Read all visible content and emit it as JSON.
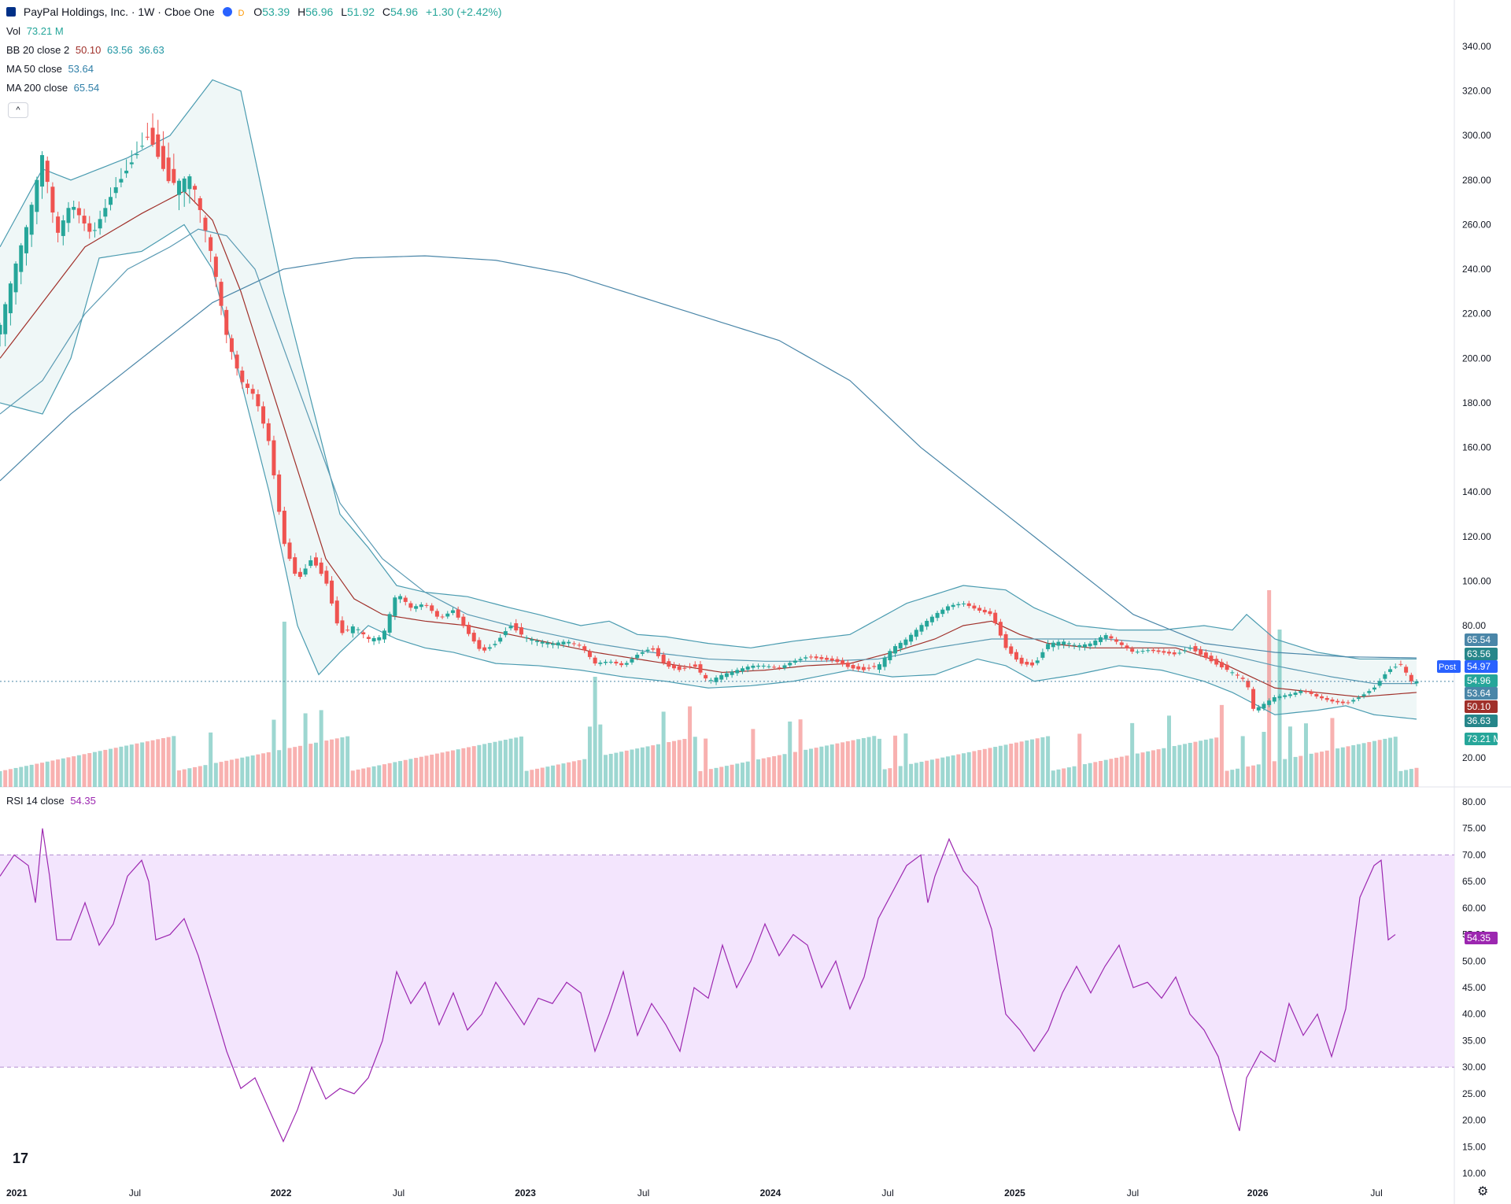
{
  "header": {
    "symbol_name": "PayPal Holdings, Inc. · 1W · Cboe One",
    "o_label": "O",
    "o_value": "53.39",
    "h_label": "H",
    "h_value": "56.96",
    "l_label": "L",
    "l_value": "51.92",
    "c_label": "C",
    "c_value": "54.96",
    "change": "+1.30 (+2.42%)",
    "badge_letter": "D"
  },
  "legends": {
    "vol_label": "Vol",
    "vol_value": "73.21 M",
    "bb_label": "BB 20 close 2",
    "bb_basis": "50.10",
    "bb_upper": "63.56",
    "bb_lower": "36.63",
    "ma50_label": "MA 50 close",
    "ma50_value": "53.64",
    "ma200_label": "MA 200 close",
    "ma200_value": "65.54",
    "rsi_label": "RSI 14 close",
    "rsi_value": "54.35"
  },
  "collapse_glyph": "^",
  "logo_text": "17",
  "colors": {
    "up": "#26a69a",
    "down": "#ef5350",
    "bb": "#4a9bb0",
    "basis": "#a0302a",
    "ma50": "#5a9ab3",
    "ma200": "#4a86a8",
    "rsi": "#9c27b0",
    "rsi_band": "#f3e5fd"
  },
  "chart_data": {
    "type": "candlestick",
    "interval": "1W",
    "price_axis": {
      "ticks": [
        "340.00",
        "320.00",
        "300.00",
        "280.00",
        "260.00",
        "240.00",
        "220.00",
        "200.00",
        "180.00",
        "160.00",
        "140.00",
        "120.00",
        "100.00",
        "80.00",
        "20.00"
      ],
      "range": [
        10,
        350
      ]
    },
    "rsi_axis": {
      "ticks": [
        "80.00",
        "75.00",
        "70.00",
        "65.00",
        "60.00",
        "55.00",
        "50.00",
        "45.00",
        "40.00",
        "35.00",
        "30.00",
        "25.00",
        "20.00",
        "15.00",
        "10.00"
      ],
      "range": [
        10,
        80
      ],
      "upper_band": 70,
      "lower_band": 30
    },
    "time_axis": [
      "2021",
      "Jul",
      "2022",
      "Jul",
      "2023",
      "Jul",
      "2024",
      "Jul",
      "2025",
      "Jul",
      "2026",
      "Jul"
    ],
    "time_axis_fractions": [
      0.0,
      0.0865,
      0.1865,
      0.2727,
      0.359,
      0.4455,
      0.532,
      0.618,
      0.7045,
      0.791,
      0.876,
      0.963
    ],
    "price_keypoints": [
      [
        0.0,
        215
      ],
      [
        0.01,
        240
      ],
      [
        0.02,
        262
      ],
      [
        0.03,
        292
      ],
      [
        0.04,
        255
      ],
      [
        0.05,
        270
      ],
      [
        0.065,
        255
      ],
      [
        0.08,
        275
      ],
      [
        0.095,
        290
      ],
      [
        0.105,
        300
      ],
      [
        0.12,
        278
      ],
      [
        0.135,
        282
      ],
      [
        0.15,
        245
      ],
      [
        0.16,
        210
      ],
      [
        0.17,
        190
      ],
      [
        0.18,
        183
      ],
      [
        0.19,
        162
      ],
      [
        0.2,
        118
      ],
      [
        0.21,
        100
      ],
      [
        0.22,
        110
      ],
      [
        0.23,
        100
      ],
      [
        0.24,
        76
      ],
      [
        0.25,
        80
      ],
      [
        0.26,
        74
      ],
      [
        0.27,
        75
      ],
      [
        0.28,
        95
      ],
      [
        0.29,
        88
      ],
      [
        0.3,
        90
      ],
      [
        0.31,
        83
      ],
      [
        0.32,
        87
      ],
      [
        0.33,
        77
      ],
      [
        0.34,
        68
      ],
      [
        0.35,
        72
      ],
      [
        0.36,
        80
      ],
      [
        0.37,
        75
      ],
      [
        0.38,
        73
      ],
      [
        0.39,
        72
      ],
      [
        0.4,
        73
      ],
      [
        0.41,
        71
      ],
      [
        0.42,
        63
      ],
      [
        0.43,
        64
      ],
      [
        0.44,
        62
      ],
      [
        0.45,
        67
      ],
      [
        0.46,
        70
      ],
      [
        0.47,
        62
      ],
      [
        0.48,
        60
      ],
      [
        0.49,
        62
      ],
      [
        0.5,
        55
      ],
      [
        0.51,
        58
      ],
      [
        0.52,
        60
      ],
      [
        0.53,
        62
      ],
      [
        0.54,
        62
      ],
      [
        0.55,
        61
      ],
      [
        0.56,
        64
      ],
      [
        0.57,
        66
      ],
      [
        0.58,
        65
      ],
      [
        0.59,
        64
      ],
      [
        0.6,
        61
      ],
      [
        0.61,
        60
      ],
      [
        0.62,
        62
      ],
      [
        0.63,
        70
      ],
      [
        0.64,
        74
      ],
      [
        0.65,
        80
      ],
      [
        0.66,
        85
      ],
      [
        0.67,
        89
      ],
      [
        0.68,
        90
      ],
      [
        0.69,
        87
      ],
      [
        0.7,
        85
      ],
      [
        0.71,
        70
      ],
      [
        0.72,
        63
      ],
      [
        0.73,
        62
      ],
      [
        0.74,
        72
      ],
      [
        0.75,
        73
      ],
      [
        0.76,
        71
      ],
      [
        0.77,
        72
      ],
      [
        0.78,
        76
      ],
      [
        0.79,
        72
      ],
      [
        0.8,
        68
      ],
      [
        0.81,
        69
      ],
      [
        0.82,
        68
      ],
      [
        0.83,
        67
      ],
      [
        0.84,
        70
      ],
      [
        0.85,
        66
      ],
      [
        0.86,
        62
      ],
      [
        0.87,
        59
      ],
      [
        0.88,
        55
      ],
      [
        0.885,
        42
      ],
      [
        0.89,
        44
      ],
      [
        0.9,
        48
      ],
      [
        0.91,
        49
      ],
      [
        0.92,
        51
      ],
      [
        0.93,
        48
      ],
      [
        0.94,
        46
      ],
      [
        0.95,
        45
      ],
      [
        0.96,
        48
      ],
      [
        0.97,
        52
      ],
      [
        0.98,
        60
      ],
      [
        0.99,
        63
      ],
      [
        0.995,
        55
      ],
      [
        1.0,
        55
      ]
    ],
    "bb_upper_keypoints": [
      [
        0.0,
        250
      ],
      [
        0.03,
        285
      ],
      [
        0.05,
        280
      ],
      [
        0.09,
        290
      ],
      [
        0.12,
        300
      ],
      [
        0.15,
        325
      ],
      [
        0.17,
        320
      ],
      [
        0.18,
        290
      ],
      [
        0.2,
        230
      ],
      [
        0.22,
        180
      ],
      [
        0.24,
        130
      ],
      [
        0.26,
        115
      ],
      [
        0.28,
        98
      ],
      [
        0.3,
        95
      ],
      [
        0.33,
        93
      ],
      [
        0.36,
        88
      ],
      [
        0.38,
        85
      ],
      [
        0.41,
        80
      ],
      [
        0.43,
        82
      ],
      [
        0.45,
        76
      ],
      [
        0.47,
        75
      ],
      [
        0.5,
        72
      ],
      [
        0.53,
        70
      ],
      [
        0.56,
        73
      ],
      [
        0.6,
        76
      ],
      [
        0.64,
        90
      ],
      [
        0.68,
        98
      ],
      [
        0.71,
        96
      ],
      [
        0.73,
        88
      ],
      [
        0.76,
        80
      ],
      [
        0.79,
        78
      ],
      [
        0.82,
        78
      ],
      [
        0.85,
        80
      ],
      [
        0.87,
        78
      ],
      [
        0.88,
        85
      ],
      [
        0.9,
        74
      ],
      [
        0.93,
        68
      ],
      [
        0.96,
        65
      ],
      [
        1.0,
        65
      ]
    ],
    "bb_lower_keypoints": [
      [
        0.0,
        180
      ],
      [
        0.03,
        175
      ],
      [
        0.05,
        200
      ],
      [
        0.07,
        245
      ],
      [
        0.1,
        248
      ],
      [
        0.13,
        260
      ],
      [
        0.15,
        240
      ],
      [
        0.17,
        190
      ],
      [
        0.19,
        140
      ],
      [
        0.21,
        80
      ],
      [
        0.225,
        58
      ],
      [
        0.24,
        68
      ],
      [
        0.26,
        80
      ],
      [
        0.28,
        74
      ],
      [
        0.3,
        70
      ],
      [
        0.32,
        68
      ],
      [
        0.35,
        63
      ],
      [
        0.38,
        62
      ],
      [
        0.41,
        60
      ],
      [
        0.44,
        57
      ],
      [
        0.47,
        55
      ],
      [
        0.5,
        52
      ],
      [
        0.53,
        53
      ],
      [
        0.56,
        55
      ],
      [
        0.6,
        60
      ],
      [
        0.63,
        57
      ],
      [
        0.66,
        58
      ],
      [
        0.69,
        65
      ],
      [
        0.71,
        62
      ],
      [
        0.73,
        55
      ],
      [
        0.76,
        58
      ],
      [
        0.79,
        62
      ],
      [
        0.82,
        60
      ],
      [
        0.85,
        55
      ],
      [
        0.87,
        50
      ],
      [
        0.9,
        40
      ],
      [
        0.93,
        42
      ],
      [
        0.95,
        44
      ],
      [
        0.97,
        40
      ],
      [
        1.0,
        38
      ]
    ],
    "bb_basis_keypoints": [
      [
        0.0,
        200
      ],
      [
        0.03,
        225
      ],
      [
        0.06,
        250
      ],
      [
        0.1,
        265
      ],
      [
        0.13,
        275
      ],
      [
        0.15,
        262
      ],
      [
        0.17,
        230
      ],
      [
        0.19,
        190
      ],
      [
        0.21,
        150
      ],
      [
        0.23,
        110
      ],
      [
        0.25,
        92
      ],
      [
        0.27,
        85
      ],
      [
        0.3,
        82
      ],
      [
        0.33,
        80
      ],
      [
        0.36,
        76
      ],
      [
        0.39,
        72
      ],
      [
        0.42,
        68
      ],
      [
        0.45,
        65
      ],
      [
        0.48,
        62
      ],
      [
        0.51,
        59
      ],
      [
        0.54,
        60
      ],
      [
        0.57,
        62
      ],
      [
        0.6,
        63
      ],
      [
        0.63,
        68
      ],
      [
        0.66,
        74
      ],
      [
        0.68,
        80
      ],
      [
        0.7,
        82
      ],
      [
        0.72,
        76
      ],
      [
        0.74,
        72
      ],
      [
        0.77,
        70
      ],
      [
        0.8,
        70
      ],
      [
        0.83,
        70
      ],
      [
        0.86,
        64
      ],
      [
        0.88,
        58
      ],
      [
        0.9,
        52
      ],
      [
        0.93,
        50
      ],
      [
        0.96,
        48
      ],
      [
        1.0,
        50
      ]
    ],
    "ma50_keypoints": [
      [
        0.0,
        175
      ],
      [
        0.03,
        190
      ],
      [
        0.06,
        220
      ],
      [
        0.09,
        240
      ],
      [
        0.12,
        250
      ],
      [
        0.14,
        258
      ],
      [
        0.16,
        255
      ],
      [
        0.18,
        240
      ],
      [
        0.2,
        205
      ],
      [
        0.22,
        170
      ],
      [
        0.24,
        135
      ],
      [
        0.27,
        110
      ],
      [
        0.3,
        95
      ],
      [
        0.33,
        85
      ],
      [
        0.36,
        80
      ],
      [
        0.39,
        76
      ],
      [
        0.42,
        72
      ],
      [
        0.46,
        68
      ],
      [
        0.5,
        65
      ],
      [
        0.54,
        64
      ],
      [
        0.58,
        64
      ],
      [
        0.62,
        65
      ],
      [
        0.66,
        70
      ],
      [
        0.7,
        74
      ],
      [
        0.74,
        74
      ],
      [
        0.78,
        74
      ],
      [
        0.82,
        72
      ],
      [
        0.86,
        68
      ],
      [
        0.9,
        62
      ],
      [
        0.94,
        57
      ],
      [
        0.97,
        54
      ],
      [
        1.0,
        54
      ]
    ],
    "ma200_keypoints": [
      [
        0.0,
        145
      ],
      [
        0.05,
        175
      ],
      [
        0.1,
        200
      ],
      [
        0.15,
        225
      ],
      [
        0.2,
        240
      ],
      [
        0.25,
        245
      ],
      [
        0.3,
        246
      ],
      [
        0.35,
        244
      ],
      [
        0.4,
        238
      ],
      [
        0.45,
        228
      ],
      [
        0.5,
        218
      ],
      [
        0.55,
        208
      ],
      [
        0.6,
        190
      ],
      [
        0.65,
        160
      ],
      [
        0.7,
        135
      ],
      [
        0.75,
        110
      ],
      [
        0.8,
        85
      ],
      [
        0.85,
        72
      ],
      [
        0.9,
        68
      ],
      [
        0.95,
        66
      ],
      [
        1.0,
        65.5
      ]
    ],
    "rsi_keypoints": [
      [
        0.0,
        66
      ],
      [
        0.01,
        70
      ],
      [
        0.02,
        68
      ],
      [
        0.025,
        61
      ],
      [
        0.03,
        75
      ],
      [
        0.035,
        66
      ],
      [
        0.04,
        54
      ],
      [
        0.05,
        54
      ],
      [
        0.06,
        61
      ],
      [
        0.065,
        57
      ],
      [
        0.07,
        53
      ],
      [
        0.08,
        57
      ],
      [
        0.09,
        66
      ],
      [
        0.1,
        69
      ],
      [
        0.105,
        65
      ],
      [
        0.11,
        54
      ],
      [
        0.12,
        55
      ],
      [
        0.13,
        58
      ],
      [
        0.14,
        51
      ],
      [
        0.15,
        42
      ],
      [
        0.16,
        33
      ],
      [
        0.17,
        26
      ],
      [
        0.18,
        28
      ],
      [
        0.19,
        22
      ],
      [
        0.2,
        16
      ],
      [
        0.21,
        22
      ],
      [
        0.22,
        30
      ],
      [
        0.23,
        24
      ],
      [
        0.24,
        26
      ],
      [
        0.25,
        25
      ],
      [
        0.26,
        28
      ],
      [
        0.27,
        35
      ],
      [
        0.28,
        48
      ],
      [
        0.29,
        42
      ],
      [
        0.3,
        46
      ],
      [
        0.31,
        38
      ],
      [
        0.32,
        44
      ],
      [
        0.33,
        37
      ],
      [
        0.34,
        40
      ],
      [
        0.35,
        46
      ],
      [
        0.36,
        42
      ],
      [
        0.37,
        38
      ],
      [
        0.38,
        43
      ],
      [
        0.39,
        42
      ],
      [
        0.4,
        46
      ],
      [
        0.41,
        44
      ],
      [
        0.42,
        33
      ],
      [
        0.43,
        40
      ],
      [
        0.44,
        48
      ],
      [
        0.45,
        36
      ],
      [
        0.46,
        42
      ],
      [
        0.47,
        38
      ],
      [
        0.48,
        33
      ],
      [
        0.49,
        45
      ],
      [
        0.5,
        43
      ],
      [
        0.51,
        53
      ],
      [
        0.52,
        45
      ],
      [
        0.53,
        50
      ],
      [
        0.54,
        57
      ],
      [
        0.55,
        51
      ],
      [
        0.56,
        55
      ],
      [
        0.57,
        53
      ],
      [
        0.58,
        45
      ],
      [
        0.59,
        50
      ],
      [
        0.6,
        41
      ],
      [
        0.61,
        47
      ],
      [
        0.62,
        58
      ],
      [
        0.63,
        63
      ],
      [
        0.64,
        68
      ],
      [
        0.65,
        70
      ],
      [
        0.655,
        61
      ],
      [
        0.66,
        66
      ],
      [
        0.67,
        73
      ],
      [
        0.68,
        67
      ],
      [
        0.69,
        64
      ],
      [
        0.7,
        56
      ],
      [
        0.71,
        40
      ],
      [
        0.72,
        37
      ],
      [
        0.73,
        33
      ],
      [
        0.74,
        37
      ],
      [
        0.75,
        44
      ],
      [
        0.76,
        49
      ],
      [
        0.77,
        44
      ],
      [
        0.78,
        49
      ],
      [
        0.79,
        53
      ],
      [
        0.8,
        45
      ],
      [
        0.81,
        46
      ],
      [
        0.82,
        43
      ],
      [
        0.83,
        47
      ],
      [
        0.84,
        40
      ],
      [
        0.85,
        37
      ],
      [
        0.86,
        32
      ],
      [
        0.87,
        22
      ],
      [
        0.875,
        18
      ],
      [
        0.88,
        28
      ],
      [
        0.89,
        33
      ],
      [
        0.9,
        31
      ],
      [
        0.91,
        42
      ],
      [
        0.92,
        36
      ],
      [
        0.93,
        40
      ],
      [
        0.94,
        32
      ],
      [
        0.95,
        41
      ],
      [
        0.96,
        62
      ],
      [
        0.97,
        68
      ],
      [
        0.975,
        69
      ],
      [
        0.98,
        54
      ],
      [
        0.985,
        55
      ]
    ]
  }
}
